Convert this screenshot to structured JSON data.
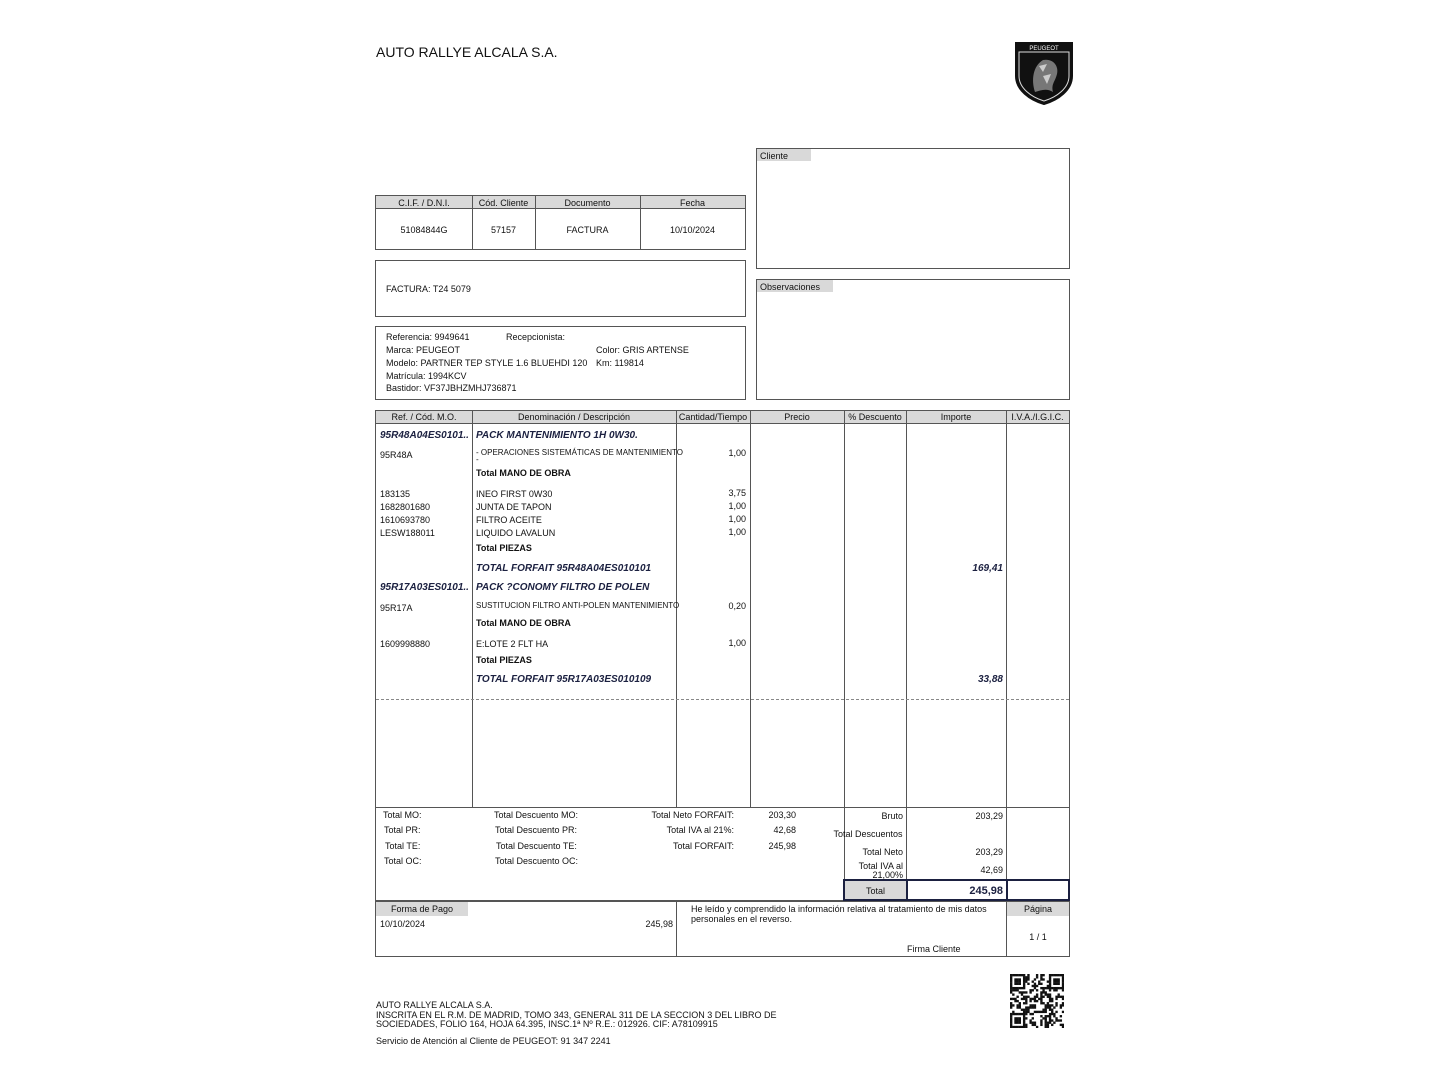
{
  "header": {
    "company": "AUTO RALLYE ALCALA S.A.",
    "logo_text": "PEUGEOT"
  },
  "client_box": {
    "label": "Cliente"
  },
  "observations_box": {
    "label": "Observaciones"
  },
  "info_table": {
    "headers": [
      "C.I.F. / D.N.I.",
      "Cód. Cliente",
      "Documento",
      "Fecha"
    ],
    "values": [
      "51084844G",
      "57157",
      "FACTURA",
      "10/10/2024"
    ]
  },
  "invoice_number": "FACTURA: T24 5079",
  "vehicle": {
    "reference": "Referencia: 9949641",
    "receptionist": "Recepcionista:",
    "brand": "Marca: PEUGEOT",
    "color": "Color: GRIS ARTENSE",
    "model": "Modelo: PARTNER TEP STYLE 1.6 BLUEHDI 120",
    "km": "Km: 119814",
    "plate": "Matrícula: 1994KCV",
    "chassis": "Bastidor: VF37JBHZMHJ736871"
  },
  "items_table": {
    "headers": [
      "Ref. / Cód. M.O.",
      "Denominación / Descripción",
      "Cantidad/Tiempo",
      "Precio",
      "% Descuento",
      "Importe",
      "I.V.A./I.G.I.C."
    ],
    "rows": [
      {
        "ref": "95R48A04ES0101..",
        "desc": "PACK MANTENIMIENTO 1H 0W30."
      },
      {
        "ref": "95R48A",
        "desc": "- OPERACIONES SISTEMÁTICAS DE MANTENIMIENTO",
        "qty": "1,00"
      },
      {
        "desc": "-"
      },
      {
        "desc": "Total MANO DE OBRA"
      },
      {
        "ref": "183135",
        "desc": "INEO FIRST 0W30",
        "qty": "3,75"
      },
      {
        "ref": "1682801680",
        "desc": "JUNTA DE TAPON",
        "qty": "1,00"
      },
      {
        "ref": "1610693780",
        "desc": "FILTRO ACEITE",
        "qty": "1,00"
      },
      {
        "ref": "LESW188011",
        "desc": "LIQUIDO LAVALUN",
        "qty": "1,00"
      },
      {
        "desc": "Total PIEZAS"
      },
      {
        "desc": "TOTAL FORFAIT 95R48A04ES010101",
        "amount": "169,41"
      },
      {
        "ref": "95R17A03ES0101..",
        "desc": "PACK ?CONOMY FILTRO DE POLEN"
      },
      {
        "ref": "95R17A",
        "desc": "SUSTITUCION FILTRO ANTI-POLEN MANTENIMIENTO",
        "qty": "0,20"
      },
      {
        "desc": "Total MANO DE OBRA"
      },
      {
        "ref": "1609998880",
        "desc": "E:LOTE 2 FLT HA",
        "qty": "1,00"
      },
      {
        "desc": "Total PIEZAS"
      },
      {
        "desc": "TOTAL FORFAIT 95R17A03ES010109",
        "amount": "33,88"
      }
    ]
  },
  "totals": {
    "mo": "Total MO:",
    "pr": "Total PR:",
    "te": "Total TE:",
    "oc": "Total OC:",
    "discount_mo": "Total Descuento MO:",
    "discount_pr": "Total Descuento PR:",
    "discount_te": "Total Descuento TE:",
    "discount_oc": "Total Descuento OC:",
    "net_forfait": {
      "label": "Total Neto FORFAIT:",
      "value": "203,30"
    },
    "vat_forfait": {
      "label": "Total IVA al 21%:",
      "value": "42,68"
    },
    "forfait": {
      "label": "Total FORFAIT:",
      "value": "245,98"
    },
    "gross": {
      "label": "Bruto",
      "value": "203,29"
    },
    "discounts": {
      "label": "Total Descuentos"
    },
    "net": {
      "label": "Total Neto",
      "value": "203,29"
    },
    "vat": {
      "label": "Total IVA al 21,00%",
      "value": "42,69"
    },
    "total": {
      "label": "Total",
      "value": "245,98"
    }
  },
  "payment": {
    "label": "Forma de Pago",
    "date": "10/10/2024",
    "amount": "245,98",
    "notice": "He leído y comprendido la información relativa al tratamiento de mis datos personales en el reverso.",
    "signature": "Firma Cliente",
    "page_label": "Página",
    "page": "1 / 1"
  },
  "footer": {
    "company": "AUTO RALLYE ALCALA S.A.",
    "registry": "INSCRITA EN EL R.M. DE MADRID, TOMO 343, GENERAL 311 DE LA SECCION 3 DEL LIBRO DE SOCIEDADES, FOLIO 164, HOJA 64.395, INSC.1ª Nº R.E.: 012926. CIF: A78109915",
    "service": "Servicio de Atención al Cliente de PEUGEOT: 91 347 2241"
  }
}
